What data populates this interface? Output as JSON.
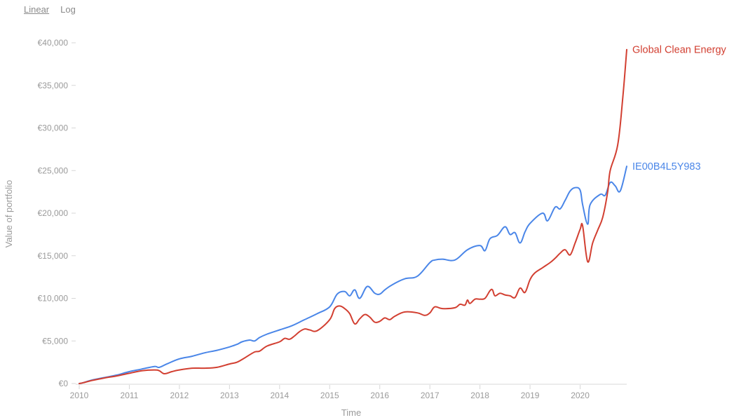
{
  "controls": {
    "scale_options": [
      "Linear",
      "Log"
    ],
    "selected_scale": "Linear"
  },
  "colors": {
    "axis": "#d7d7d7",
    "tick_text": "#9a9a9a",
    "series_blue": "#4a86e8",
    "series_red": "#d23f31"
  },
  "chart_data": {
    "type": "line",
    "title": "",
    "xlabel": "Time",
    "ylabel": "Value of portfolio",
    "xlim": [
      2010.0,
      2020.93
    ],
    "ylim": [
      0,
      40000
    ],
    "x_ticks": [
      2010,
      2011,
      2012,
      2013,
      2014,
      2015,
      2016,
      2017,
      2018,
      2019,
      2020
    ],
    "y_ticks": [
      0,
      5000,
      10000,
      15000,
      20000,
      25000,
      30000,
      35000,
      40000
    ],
    "y_tick_labels": [
      "€0",
      "€5,000",
      "€10,000",
      "€15,000",
      "€20,000",
      "€25,000",
      "€30,000",
      "€35,000",
      "€40,000"
    ],
    "grid": false,
    "legend": "inline labels at line ends",
    "series": [
      {
        "name": "IE00B4L5Y983",
        "color": "#4a86e8",
        "x": [
          2010.0,
          2010.08,
          2010.25,
          2010.5,
          2010.75,
          2011.0,
          2011.25,
          2011.5,
          2011.6,
          2011.75,
          2012.0,
          2012.25,
          2012.5,
          2012.75,
          2013.0,
          2013.15,
          2013.25,
          2013.4,
          2013.5,
          2013.6,
          2013.75,
          2014.0,
          2014.25,
          2014.5,
          2014.75,
          2015.0,
          2015.15,
          2015.3,
          2015.4,
          2015.5,
          2015.6,
          2015.75,
          2015.9,
          2016.0,
          2016.1,
          2016.25,
          2016.5,
          2016.75,
          2017.0,
          2017.1,
          2017.25,
          2017.5,
          2017.75,
          2018.0,
          2018.1,
          2018.2,
          2018.35,
          2018.5,
          2018.6,
          2018.7,
          2018.8,
          2018.9,
          2019.0,
          2019.25,
          2019.35,
          2019.5,
          2019.6,
          2019.7,
          2019.8,
          2019.9,
          2020.0,
          2020.05,
          2020.15,
          2020.2,
          2020.4,
          2020.5,
          2020.6,
          2020.7,
          2020.8,
          2020.93
        ],
        "y": [
          0,
          100,
          400,
          700,
          1000,
          1400,
          1700,
          2000,
          1900,
          2300,
          2900,
          3200,
          3600,
          3900,
          4300,
          4600,
          4900,
          5100,
          5000,
          5400,
          5800,
          6300,
          6800,
          7500,
          8200,
          9000,
          10500,
          10800,
          10300,
          11000,
          10000,
          11400,
          10600,
          10500,
          11000,
          11600,
          12300,
          12600,
          14200,
          14500,
          14600,
          14500,
          15700,
          16200,
          15600,
          17000,
          17400,
          18400,
          17500,
          17700,
          16500,
          17800,
          18800,
          20000,
          19100,
          20700,
          20500,
          21500,
          22600,
          23000,
          22700,
          21000,
          18700,
          21000,
          22200,
          22100,
          23600,
          23200,
          22600,
          25500
        ]
      },
      {
        "name": "Global Clean Energy",
        "color": "#d23f31",
        "x": [
          2010.0,
          2010.08,
          2010.25,
          2010.5,
          2010.75,
          2011.0,
          2011.25,
          2011.5,
          2011.6,
          2011.7,
          2011.85,
          2012.0,
          2012.25,
          2012.5,
          2012.75,
          2013.0,
          2013.15,
          2013.3,
          2013.5,
          2013.6,
          2013.75,
          2014.0,
          2014.1,
          2014.2,
          2014.3,
          2014.4,
          2014.5,
          2014.6,
          2014.75,
          2015.0,
          2015.1,
          2015.2,
          2015.3,
          2015.4,
          2015.5,
          2015.6,
          2015.7,
          2015.8,
          2015.9,
          2016.0,
          2016.1,
          2016.2,
          2016.3,
          2016.5,
          2016.75,
          2016.9,
          2017.0,
          2017.1,
          2017.25,
          2017.5,
          2017.6,
          2017.7,
          2017.75,
          2017.8,
          2017.9,
          2018.0,
          2018.1,
          2018.2,
          2018.25,
          2018.3,
          2018.4,
          2018.5,
          2018.6,
          2018.7,
          2018.8,
          2018.9,
          2019.0,
          2019.1,
          2019.25,
          2019.4,
          2019.5,
          2019.6,
          2019.7,
          2019.8,
          2019.9,
          2020.0,
          2020.05,
          2020.15,
          2020.25,
          2020.35,
          2020.45,
          2020.55,
          2020.6,
          2020.75,
          2020.85,
          2020.93
        ],
        "y": [
          0,
          100,
          350,
          650,
          900,
          1200,
          1500,
          1600,
          1500,
          1150,
          1400,
          1600,
          1800,
          1800,
          1900,
          2300,
          2500,
          3000,
          3700,
          3800,
          4400,
          4900,
          5300,
          5200,
          5600,
          6100,
          6400,
          6300,
          6200,
          7500,
          8800,
          9100,
          8800,
          8200,
          7000,
          7600,
          8100,
          7800,
          7200,
          7300,
          7700,
          7500,
          7900,
          8400,
          8300,
          8000,
          8300,
          9000,
          8800,
          8900,
          9300,
          9200,
          9800,
          9400,
          9900,
          9900,
          10000,
          10900,
          11000,
          10300,
          10600,
          10400,
          10300,
          10100,
          11200,
          10700,
          12200,
          13000,
          13600,
          14200,
          14700,
          15300,
          15700,
          15100,
          16500,
          18100,
          18500,
          14300,
          16500,
          18000,
          19500,
          22500,
          25000,
          28000,
          33500,
          39200
        ]
      }
    ]
  }
}
